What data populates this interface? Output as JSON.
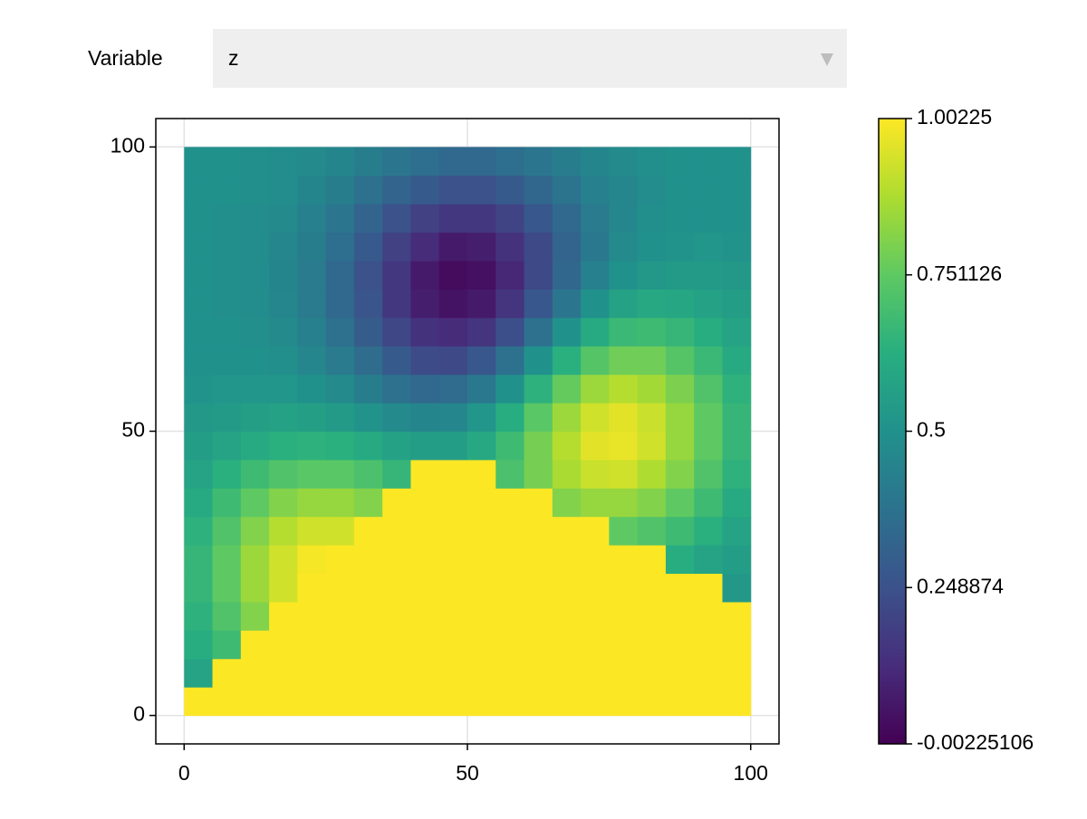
{
  "ui": {
    "dropdown_label": "Variable",
    "dropdown_value": "z"
  },
  "chart_data": {
    "type": "heatmap",
    "colormap": "viridis",
    "grid": true,
    "x_edges": [
      0,
      5,
      10,
      15,
      20,
      25,
      30,
      35,
      40,
      45,
      50,
      55,
      60,
      65,
      70,
      75,
      80,
      85,
      90,
      95,
      100
    ],
    "y_edges": [
      0,
      5,
      10,
      15,
      20,
      25,
      30,
      35,
      40,
      45,
      50,
      55,
      60,
      65,
      70,
      75,
      80,
      85,
      90,
      95,
      100
    ],
    "z": [
      [
        1,
        1,
        1,
        1,
        1,
        1,
        1,
        1,
        1,
        1,
        1,
        1,
        1,
        1,
        1,
        1,
        1,
        1,
        1,
        1
      ],
      [
        0.58,
        1,
        1,
        1,
        1,
        1,
        1,
        1,
        1,
        1,
        1,
        1,
        1,
        1,
        1,
        1,
        1,
        1,
        1,
        1
      ],
      [
        0.62,
        0.68,
        1,
        1,
        1,
        1,
        1,
        1,
        1,
        1,
        1,
        1,
        1,
        1,
        1,
        1,
        1,
        1,
        1,
        1
      ],
      [
        0.64,
        0.72,
        0.81,
        1,
        1,
        1,
        1,
        1,
        1,
        1,
        1,
        1,
        1,
        1,
        1,
        1,
        1,
        1,
        1,
        1
      ],
      [
        0.66,
        0.75,
        0.85,
        0.93,
        1,
        1,
        1,
        1,
        1,
        1,
        1,
        1,
        1,
        1,
        1,
        1,
        1,
        1,
        1,
        0.53
      ],
      [
        0.66,
        0.75,
        0.85,
        0.93,
        0.99,
        1,
        1,
        1,
        1,
        1,
        1,
        1,
        1,
        1,
        1,
        1,
        1,
        0.62,
        0.58,
        0.55
      ],
      [
        0.64,
        0.72,
        0.81,
        0.89,
        0.93,
        0.93,
        1,
        1,
        1,
        1,
        1,
        1,
        1,
        1,
        1,
        0.75,
        0.72,
        0.68,
        0.63,
        0.58
      ],
      [
        0.61,
        0.68,
        0.75,
        0.81,
        0.84,
        0.84,
        0.81,
        1,
        1,
        1,
        1,
        1,
        1,
        0.81,
        0.84,
        0.84,
        0.81,
        0.75,
        0.68,
        0.61
      ],
      [
        0.58,
        0.63,
        0.68,
        0.72,
        0.74,
        0.74,
        0.71,
        0.66,
        1,
        1,
        1,
        0.71,
        0.79,
        0.87,
        0.92,
        0.93,
        0.88,
        0.81,
        0.72,
        0.64
      ],
      [
        0.55,
        0.58,
        0.61,
        0.63,
        0.64,
        0.63,
        0.61,
        0.57,
        0.55,
        0.55,
        0.6,
        0.68,
        0.79,
        0.89,
        0.96,
        0.97,
        0.93,
        0.84,
        0.75,
        0.66
      ],
      [
        0.53,
        0.54,
        0.56,
        0.57,
        0.56,
        0.54,
        0.51,
        0.47,
        0.45,
        0.46,
        0.52,
        0.62,
        0.74,
        0.85,
        0.93,
        0.96,
        0.92,
        0.84,
        0.75,
        0.66
      ],
      [
        0.51,
        0.52,
        0.52,
        0.52,
        0.5,
        0.47,
        0.42,
        0.37,
        0.34,
        0.35,
        0.4,
        0.5,
        0.64,
        0.76,
        0.85,
        0.89,
        0.86,
        0.8,
        0.72,
        0.64
      ],
      [
        0.5,
        0.5,
        0.5,
        0.49,
        0.46,
        0.41,
        0.35,
        0.28,
        0.23,
        0.22,
        0.27,
        0.37,
        0.5,
        0.63,
        0.73,
        0.78,
        0.78,
        0.73,
        0.67,
        0.61
      ],
      [
        0.5,
        0.5,
        0.49,
        0.47,
        0.43,
        0.37,
        0.29,
        0.21,
        0.14,
        0.12,
        0.15,
        0.24,
        0.37,
        0.5,
        0.61,
        0.67,
        0.68,
        0.66,
        0.62,
        0.58
      ],
      [
        0.5,
        0.49,
        0.48,
        0.46,
        0.41,
        0.34,
        0.26,
        0.16,
        0.08,
        0.05,
        0.07,
        0.15,
        0.27,
        0.39,
        0.5,
        0.57,
        0.6,
        0.59,
        0.57,
        0.55
      ],
      [
        0.5,
        0.49,
        0.48,
        0.45,
        0.41,
        0.34,
        0.25,
        0.16,
        0.07,
        0.03,
        0.04,
        0.11,
        0.22,
        0.33,
        0.43,
        0.5,
        0.53,
        0.54,
        0.54,
        0.53
      ],
      [
        0.5,
        0.49,
        0.48,
        0.46,
        0.42,
        0.36,
        0.28,
        0.19,
        0.12,
        0.07,
        0.08,
        0.14,
        0.22,
        0.32,
        0.4,
        0.47,
        0.5,
        0.51,
        0.52,
        0.51
      ],
      [
        0.5,
        0.49,
        0.48,
        0.47,
        0.43,
        0.39,
        0.32,
        0.25,
        0.19,
        0.16,
        0.16,
        0.2,
        0.27,
        0.34,
        0.41,
        0.46,
        0.49,
        0.5,
        0.5,
        0.5
      ],
      [
        0.5,
        0.5,
        0.49,
        0.48,
        0.45,
        0.42,
        0.37,
        0.32,
        0.28,
        0.25,
        0.25,
        0.28,
        0.33,
        0.38,
        0.43,
        0.46,
        0.48,
        0.5,
        0.5,
        0.5
      ],
      [
        0.5,
        0.5,
        0.49,
        0.48,
        0.47,
        0.45,
        0.42,
        0.39,
        0.36,
        0.34,
        0.34,
        0.36,
        0.39,
        0.42,
        0.45,
        0.47,
        0.49,
        0.5,
        0.5,
        0.5
      ]
    ],
    "xlim": [
      -5,
      105
    ],
    "ylim": [
      -5,
      105
    ],
    "xticks": [
      0,
      50,
      100
    ],
    "yticks": [
      0,
      50,
      100
    ],
    "colorbar": {
      "limits": [
        -0.00225106,
        1.00225
      ],
      "ticks": [
        -0.00225106,
        0.248874,
        0.5,
        0.751126,
        1.00225
      ]
    }
  }
}
